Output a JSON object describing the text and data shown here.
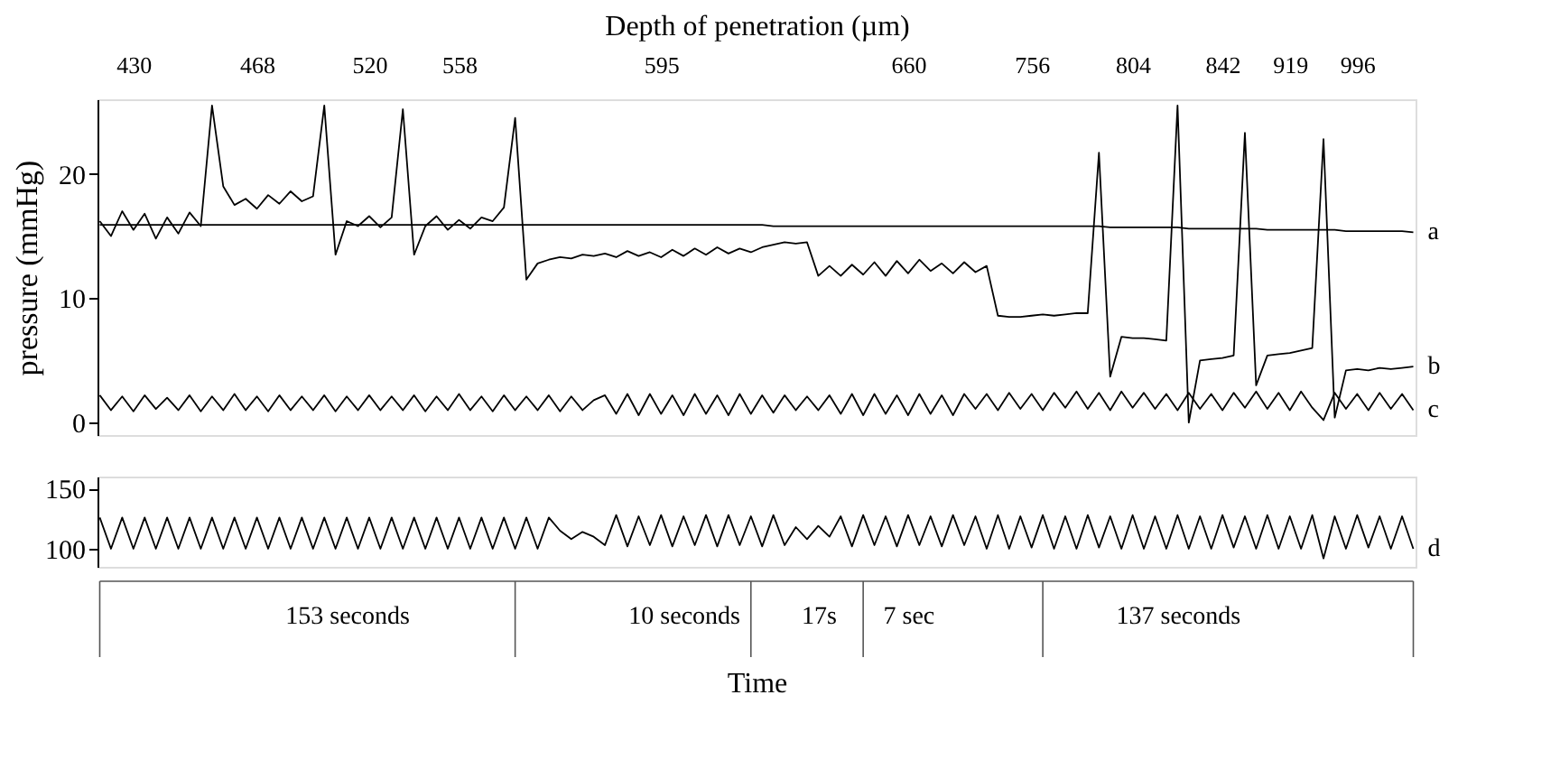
{
  "chart_data": [
    {
      "type": "line",
      "ylabel": "pressure (mmHg)",
      "x2label": "Depth of penetration (µm)",
      "ylim": [
        -1,
        26
      ],
      "yticks": [
        0,
        10,
        20
      ],
      "categories": [
        null,
        null,
        null,
        "430",
        null,
        null,
        null,
        null,
        null,
        null,
        null,
        null,
        null,
        null,
        "468",
        null,
        null,
        null,
        null,
        null,
        null,
        null,
        null,
        null,
        "520",
        null,
        null,
        null,
        null,
        null,
        null,
        null,
        "558",
        null,
        null,
        null,
        null,
        null,
        null,
        null,
        null,
        null,
        null,
        null,
        null,
        null,
        null,
        null,
        null,
        null,
        "595",
        null,
        null,
        null,
        null,
        null,
        null,
        null,
        null,
        null,
        null,
        null,
        null,
        null,
        null,
        null,
        null,
        null,
        null,
        null,
        null,
        null,
        "660",
        null,
        null,
        null,
        null,
        null,
        null,
        null,
        null,
        null,
        null,
        "756",
        null,
        null,
        null,
        null,
        null,
        null,
        null,
        null,
        "804",
        null,
        null,
        null,
        null,
        null,
        null,
        null,
        "842",
        null,
        null,
        null,
        null,
        null,
        "919",
        null,
        null,
        null,
        null,
        null,
        "996",
        null,
        null,
        null,
        null,
        null
      ],
      "series": [
        {
          "name": "a",
          "color": "#000000",
          "values": [
            15.9,
            15.9,
            15.9,
            15.9,
            15.9,
            15.9,
            15.9,
            15.9,
            15.9,
            15.9,
            15.9,
            15.9,
            15.9,
            15.9,
            15.9,
            15.9,
            15.9,
            15.9,
            15.9,
            15.9,
            15.9,
            15.9,
            15.9,
            15.9,
            15.9,
            15.9,
            15.9,
            15.9,
            15.9,
            15.9,
            15.9,
            15.9,
            15.9,
            15.9,
            15.9,
            15.9,
            15.9,
            15.9,
            15.9,
            15.9,
            15.9,
            15.9,
            15.9,
            15.9,
            15.9,
            15.9,
            15.9,
            15.9,
            15.9,
            15.9,
            15.9,
            15.9,
            15.9,
            15.9,
            15.9,
            15.9,
            15.9,
            15.9,
            15.9,
            15.9,
            15.8,
            15.8,
            15.8,
            15.8,
            15.8,
            15.8,
            15.8,
            15.8,
            15.8,
            15.8,
            15.8,
            15.8,
            15.8,
            15.8,
            15.8,
            15.8,
            15.8,
            15.8,
            15.8,
            15.8,
            15.8,
            15.8,
            15.8,
            15.8,
            15.8,
            15.8,
            15.8,
            15.8,
            15.8,
            15.8,
            15.7,
            15.7,
            15.7,
            15.7,
            15.7,
            15.7,
            15.7,
            15.6,
            15.6,
            15.6,
            15.6,
            15.6,
            15.6,
            15.6,
            15.5,
            15.5,
            15.5,
            15.5,
            15.5,
            15.5,
            15.5,
            15.4,
            15.4,
            15.4,
            15.4,
            15.4,
            15.4,
            15.3
          ]
        },
        {
          "name": "b",
          "color": "#000000",
          "values": [
            16.2,
            15,
            17,
            15.5,
            16.8,
            14.8,
            16.5,
            15.2,
            16.9,
            15.8,
            25.5,
            19,
            17.5,
            18,
            17.2,
            18.3,
            17.6,
            18.6,
            17.8,
            18.2,
            25.5,
            13.5,
            16.2,
            15.8,
            16.6,
            15.7,
            16.5,
            25.2,
            13.5,
            15.8,
            16.6,
            15.5,
            16.3,
            15.6,
            16.5,
            16.2,
            17.3,
            24.5,
            11.5,
            12.8,
            13.1,
            13.3,
            13.2,
            13.5,
            13.4,
            13.6,
            13.3,
            13.8,
            13.4,
            13.7,
            13.3,
            13.9,
            13.4,
            14,
            13.5,
            14.1,
            13.6,
            14,
            13.7,
            14.1,
            14.3,
            14.5,
            14.4,
            14.5,
            11.8,
            12.6,
            11.8,
            12.7,
            11.9,
            12.9,
            11.8,
            13,
            12,
            13.1,
            12.2,
            12.8,
            12,
            12.9,
            12.1,
            12.6,
            8.6,
            8.5,
            8.5,
            8.6,
            8.7,
            8.6,
            8.7,
            8.8,
            8.8,
            21.7,
            3.7,
            6.9,
            6.8,
            6.8,
            6.7,
            6.6,
            25.5,
            0,
            5,
            5.1,
            5.2,
            5.4,
            23.3,
            3,
            5.4,
            5.5,
            5.6,
            5.8,
            6,
            22.8,
            0.4,
            4.2,
            4.3,
            4.2,
            4.4,
            4.3,
            4.4,
            4.5
          ]
        },
        {
          "name": "c",
          "color": "#000000",
          "values": [
            2.2,
            1.0,
            2.1,
            0.9,
            2.2,
            1.1,
            2.0,
            1.0,
            2.2,
            0.9,
            2.1,
            1.0,
            2.3,
            1.0,
            2.1,
            0.9,
            2.2,
            1.0,
            2.1,
            1.0,
            2.2,
            0.9,
            2.1,
            1.0,
            2.2,
            1.0,
            2.1,
            1.0,
            2.2,
            0.9,
            2.1,
            1.0,
            2.3,
            1.0,
            2.1,
            0.9,
            2.2,
            1.0,
            2.1,
            1.0,
            2.2,
            0.9,
            2.1,
            1.0,
            1.8,
            2.2,
            0.7,
            2.3,
            0.6,
            2.3,
            0.7,
            2.2,
            0.6,
            2.3,
            0.7,
            2.2,
            0.6,
            2.3,
            0.7,
            2.2,
            0.8,
            2.2,
            1.0,
            2.1,
            1.0,
            2.2,
            0.7,
            2.3,
            0.6,
            2.3,
            0.7,
            2.2,
            0.6,
            2.3,
            0.7,
            2.2,
            0.6,
            2.3,
            1.1,
            2.3,
            1.0,
            2.4,
            1.1,
            2.3,
            1.0,
            2.4,
            1.2,
            2.5,
            1.1,
            2.4,
            1.0,
            2.5,
            1.2,
            2.4,
            1.1,
            2.3,
            1.0,
            2.4,
            1.1,
            2.3,
            1.0,
            2.4,
            1.2,
            2.5,
            1.1,
            2.4,
            1.0,
            2.5,
            1.2,
            0.2,
            2.4,
            1.1,
            2.3,
            1.0,
            2.4,
            1.1,
            2.3,
            1.0
          ]
        }
      ]
    },
    {
      "type": "line",
      "xlabel": "Time",
      "ylim": [
        85,
        160
      ],
      "yticks": [
        100,
        150
      ],
      "categories": [
        null,
        null,
        null,
        null,
        null,
        null,
        null,
        null,
        null,
        null,
        null,
        null,
        null,
        null,
        null,
        null,
        null,
        null,
        null,
        null,
        null,
        null,
        "153 seconds",
        null,
        null,
        null,
        null,
        null,
        null,
        null,
        null,
        null,
        null,
        null,
        null,
        null,
        null,
        null,
        null,
        null,
        null,
        null,
        null,
        null,
        null,
        null,
        null,
        null,
        null,
        null,
        null,
        null,
        "10 seconds",
        null,
        null,
        null,
        null,
        null,
        null,
        null,
        null,
        null,
        null,
        null,
        "17s",
        null,
        null,
        null,
        null,
        null,
        null,
        null,
        "7 sec",
        null,
        null,
        null,
        null,
        null,
        null,
        null,
        null,
        null,
        null,
        null,
        null,
        null,
        null,
        null,
        null,
        null,
        null,
        null,
        null,
        null,
        null,
        null,
        "137 seconds",
        null,
        null,
        null,
        null,
        null,
        null,
        null,
        null,
        null,
        null,
        null,
        null,
        null,
        null,
        null,
        null,
        null,
        null,
        null,
        null,
        null
      ],
      "series": [
        {
          "name": "d",
          "color": "#000000",
          "values": [
            126,
            100,
            126,
            100,
            126,
            100,
            126,
            100,
            126,
            100,
            126,
            100,
            126,
            100,
            126,
            100,
            126,
            100,
            126,
            100,
            126,
            100,
            126,
            100,
            126,
            100,
            126,
            100,
            126,
            100,
            126,
            100,
            126,
            100,
            126,
            100,
            126,
            100,
            126,
            100,
            126,
            115,
            108,
            114,
            110,
            103,
            128,
            102,
            127,
            103,
            128,
            102,
            127,
            103,
            128,
            102,
            128,
            103,
            127,
            102,
            128,
            103,
            118,
            108,
            119,
            110,
            127,
            102,
            128,
            103,
            127,
            102,
            128,
            103,
            127,
            102,
            128,
            103,
            127,
            100,
            128,
            100,
            127,
            101,
            128,
            100,
            127,
            100,
            128,
            101,
            127,
            100,
            128,
            100,
            127,
            100,
            128,
            100,
            127,
            100,
            128,
            101,
            127,
            100,
            128,
            100,
            127,
            100,
            128,
            92,
            127,
            100,
            128,
            101,
            127,
            100,
            127,
            100
          ]
        }
      ]
    }
  ]
}
